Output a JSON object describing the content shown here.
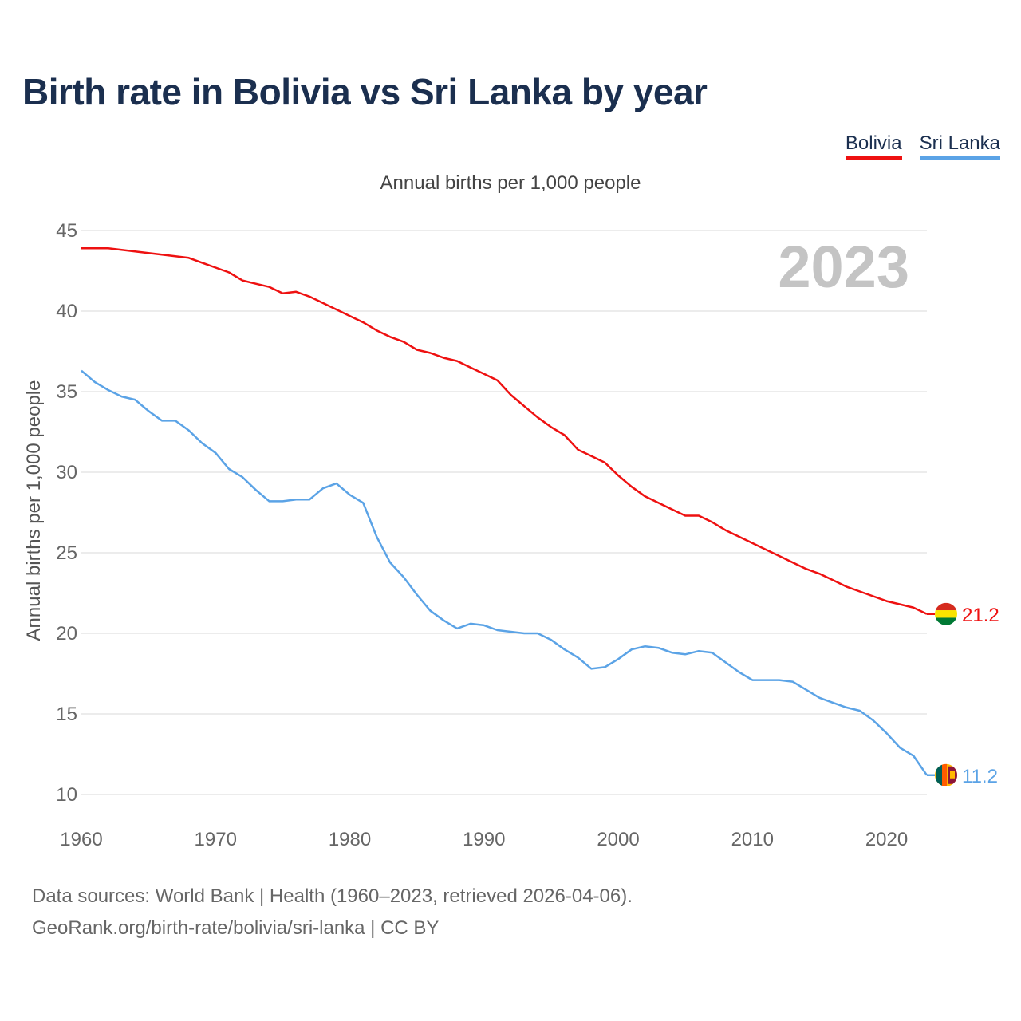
{
  "title": "Birth rate in Bolivia vs Sri Lanka by year",
  "legend": [
    {
      "label": "Bolivia",
      "color": "#ee1111"
    },
    {
      "label": "Sri Lanka",
      "color": "#5ba3e6"
    }
  ],
  "footer": {
    "line1": "Data sources: World Bank | Health (1960–2023, retrieved 2026-04-06).",
    "line2": "GeoRank.org/birth-rate/bolivia/sri-lanka | CC BY"
  },
  "chart_data": {
    "type": "line",
    "title": "Birth rate in Bolivia vs Sri Lanka by year",
    "subtitle": "Annual births per 1,000 people",
    "xlabel": "",
    "ylabel": "Annual births per 1,000 people",
    "xlim": [
      1960,
      2023
    ],
    "ylim": [
      10,
      45
    ],
    "yticks": [
      10,
      15,
      20,
      25,
      30,
      35,
      40,
      45
    ],
    "xticks": [
      1960,
      1970,
      1980,
      1990,
      2000,
      2010,
      2020
    ],
    "grid": true,
    "legend_position": "top-right",
    "year_label": "2023",
    "x": [
      1960,
      1961,
      1962,
      1963,
      1964,
      1965,
      1966,
      1967,
      1968,
      1969,
      1970,
      1971,
      1972,
      1973,
      1974,
      1975,
      1976,
      1977,
      1978,
      1979,
      1980,
      1981,
      1982,
      1983,
      1984,
      1985,
      1986,
      1987,
      1988,
      1989,
      1990,
      1991,
      1992,
      1993,
      1994,
      1995,
      1996,
      1997,
      1998,
      1999,
      2000,
      2001,
      2002,
      2003,
      2004,
      2005,
      2006,
      2007,
      2008,
      2009,
      2010,
      2011,
      2012,
      2013,
      2014,
      2015,
      2016,
      2017,
      2018,
      2019,
      2020,
      2021,
      2022,
      2023
    ],
    "series": [
      {
        "name": "Bolivia",
        "color": "#ee1111",
        "end_label": "21.2",
        "values": [
          43.9,
          43.9,
          43.9,
          43.8,
          43.7,
          43.6,
          43.5,
          43.4,
          43.3,
          43.0,
          42.7,
          42.4,
          41.9,
          41.7,
          41.5,
          41.1,
          41.2,
          40.9,
          40.5,
          40.1,
          39.7,
          39.3,
          38.8,
          38.4,
          38.1,
          37.6,
          37.4,
          37.1,
          36.9,
          36.5,
          36.1,
          35.7,
          34.8,
          34.1,
          33.4,
          32.8,
          32.3,
          31.4,
          31.0,
          30.6,
          29.8,
          29.1,
          28.5,
          28.1,
          27.7,
          27.3,
          27.3,
          26.9,
          26.4,
          26.0,
          25.6,
          25.2,
          24.8,
          24.4,
          24.0,
          23.7,
          23.3,
          22.9,
          22.6,
          22.3,
          22.0,
          21.8,
          21.6,
          21.2
        ]
      },
      {
        "name": "Sri Lanka",
        "color": "#5ba3e6",
        "end_label": "11.2",
        "values": [
          36.3,
          35.6,
          35.1,
          34.7,
          34.5,
          33.8,
          33.2,
          33.2,
          32.6,
          31.8,
          31.2,
          30.2,
          29.7,
          28.9,
          28.2,
          28.2,
          28.3,
          28.3,
          29.0,
          29.3,
          28.6,
          28.1,
          26.0,
          24.4,
          23.5,
          22.4,
          21.4,
          20.8,
          20.3,
          20.6,
          20.5,
          20.2,
          20.1,
          20.0,
          20.0,
          19.6,
          19.0,
          18.5,
          17.8,
          17.9,
          18.4,
          19.0,
          19.2,
          19.1,
          18.8,
          18.7,
          18.9,
          18.8,
          18.2,
          17.6,
          17.1,
          17.1,
          17.1,
          17.0,
          16.5,
          16.0,
          15.7,
          15.4,
          15.2,
          14.6,
          13.8,
          12.9,
          12.4,
          11.2
        ]
      }
    ]
  }
}
